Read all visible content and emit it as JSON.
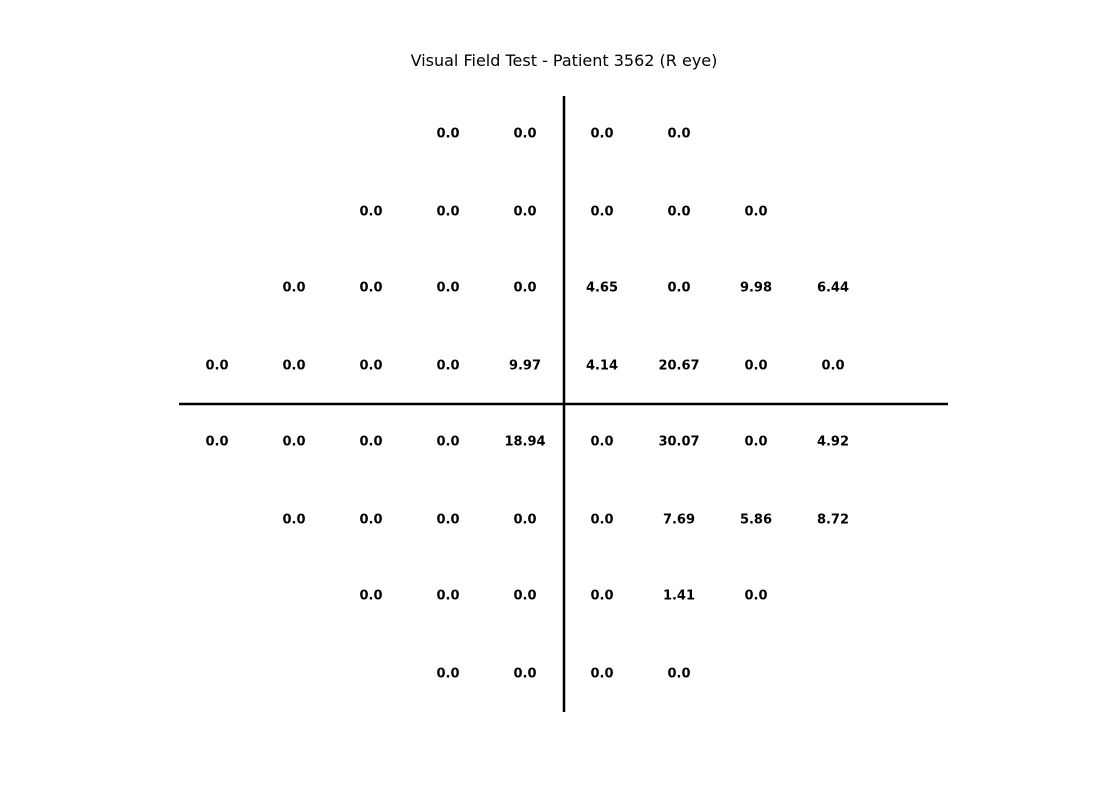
{
  "chart_data": {
    "type": "table",
    "title": "Visual Field Test - Patient 3562 (R eye)",
    "xlabel": "",
    "ylabel": "",
    "grid": false,
    "value_color": "#000000",
    "axis_color": "#000000",
    "rows": [
      [
        null,
        null,
        null,
        "0.0",
        "0.0",
        "0.0",
        "0.0",
        null,
        null,
        null
      ],
      [
        null,
        null,
        "0.0",
        "0.0",
        "0.0",
        "0.0",
        "0.0",
        "0.0",
        null,
        null
      ],
      [
        null,
        "0.0",
        "0.0",
        "0.0",
        "0.0",
        "4.65",
        "0.0",
        "9.98",
        "6.44",
        null
      ],
      [
        "0.0",
        "0.0",
        "0.0",
        "0.0",
        "9.97",
        "4.14",
        "20.67",
        "0.0",
        "0.0",
        null
      ],
      [
        "0.0",
        "0.0",
        "0.0",
        "0.0",
        "18.94",
        "0.0",
        "30.07",
        "0.0",
        "4.92",
        null
      ],
      [
        null,
        "0.0",
        "0.0",
        "0.0",
        "0.0",
        "0.0",
        "7.69",
        "5.86",
        "8.72",
        null
      ],
      [
        null,
        null,
        "0.0",
        "0.0",
        "0.0",
        "0.0",
        "1.41",
        "0.0",
        null,
        null
      ],
      [
        null,
        null,
        null,
        "0.0",
        "0.0",
        "0.0",
        "0.0",
        null,
        null,
        null
      ]
    ]
  }
}
